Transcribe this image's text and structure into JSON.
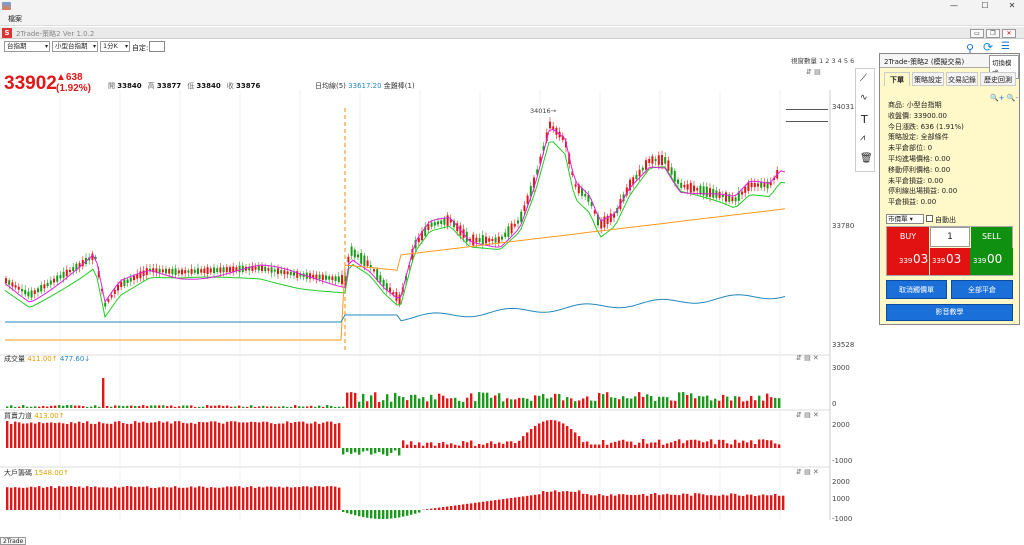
{
  "window": {
    "min": "—",
    "max": "☐",
    "close": "✕"
  },
  "menu": {
    "file": "檔案"
  },
  "app": {
    "title": "2Trade-策略2 Ver 1.0.2",
    "s_logo": "S"
  },
  "toolbar": {
    "market": "台指期",
    "product": "小型台指期",
    "period": "1分K",
    "custom_label": "自定:"
  },
  "chart_sets": "視窗數量 1 2 3 4 5 6",
  "quote": {
    "price": "33902",
    "change": "▲638",
    "pct": "(1.92%)",
    "ohlc": [
      {
        "k": "開",
        "v": "33840"
      },
      {
        "k": "高",
        "v": "33877"
      },
      {
        "k": "低",
        "v": "33840"
      },
      {
        "k": "收",
        "v": "33876"
      }
    ]
  },
  "legend": {
    "ma_label": "日均線(5)",
    "ma_value": "33617.20",
    "gold_label": "金雞棒(1)"
  },
  "price_axis": {
    "top": "34031",
    "mid": "33780",
    "low": "33528"
  },
  "peak_label": "34016→",
  "volume": {
    "title": "成交量",
    "v1": "411.00↑",
    "v2": "477.60↓",
    "axis_top": "3000",
    "axis_bottom": "0"
  },
  "power": {
    "title": "買賣力道",
    "v1": "413.00↑",
    "axis_top": "2000",
    "axis_bottom": "-1000"
  },
  "chips": {
    "title": "大戶籌碼",
    "v1": "1548.00↑",
    "axis_top": "2000",
    "axis_mid": "1000",
    "axis_bottom": "-1000"
  },
  "panel": {
    "title": "2Trade-策略2 (模擬交易)",
    "switch": "切換模式",
    "tabs": [
      "下單",
      "策略設定",
      "交易記錄",
      "歷史回測"
    ],
    "lines": [
      "商品: 小型台指期",
      "收盤價: 33900.00",
      "今日漲跌: 636 (1.91%)",
      "策略設定: 全部條件",
      "未平倉部位: 0",
      "平均進場價格: 0.00",
      "移動停利價格: 0.00",
      "未平倉損益: 0.00",
      "停利線出場損益: 0.00",
      "平倉損益: 0.00"
    ],
    "order_type": "市價單",
    "auto_exit": "自動出",
    "buy": "BUY",
    "sell": "SELL",
    "qty": "1",
    "buy_px_small": "339",
    "buy_px_big": "03",
    "sell_px_small": "339",
    "sell_px_big": "00",
    "cancel": "取消觸價單",
    "close_all": "全部平倉",
    "video": "影音教學",
    "zoom": "🔍+ 🔍-"
  },
  "colors": {
    "up": "#e01818",
    "down": "#1a9a1a",
    "ma_green": "#22cc22",
    "ma_magenta": "#dd22dd",
    "ma_orange": "#ff9922",
    "line_blue": "#2288bb"
  },
  "bottom_tab": "2Trade"
}
